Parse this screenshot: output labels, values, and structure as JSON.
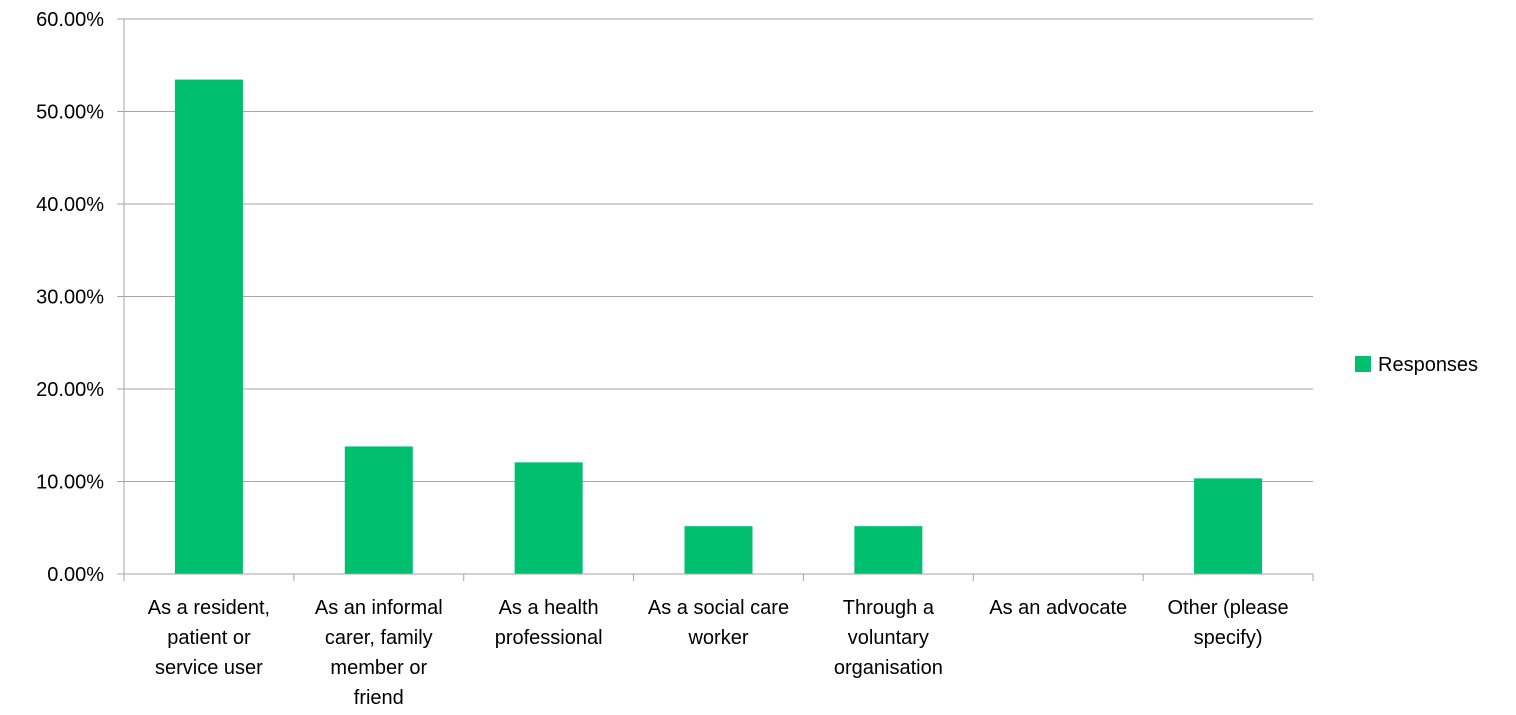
{
  "chart_data": {
    "type": "bar",
    "categories": [
      [
        "As a resident,",
        "patient or",
        "service user"
      ],
      [
        "As an informal",
        "carer, family",
        "member or",
        "friend"
      ],
      [
        "As a health",
        "professional"
      ],
      [
        "As a social care",
        "worker"
      ],
      [
        "Through a",
        "voluntary",
        "organisation"
      ],
      [
        "As an advocate"
      ],
      [
        "Other (please",
        "specify)"
      ]
    ],
    "series": [
      {
        "name": "Responses",
        "color": "#00BF6F",
        "values": [
          53.45,
          13.79,
          12.07,
          5.17,
          5.17,
          0,
          10.34
        ]
      }
    ],
    "yticks": [
      "0.00%",
      "10.00%",
      "20.00%",
      "30.00%",
      "40.00%",
      "50.00%",
      "60.00%"
    ],
    "ylim": [
      0,
      60
    ],
    "grid": true,
    "legend": "right",
    "colors": {
      "grid": "#A6A6A6",
      "axis": "#A6A6A6"
    }
  }
}
